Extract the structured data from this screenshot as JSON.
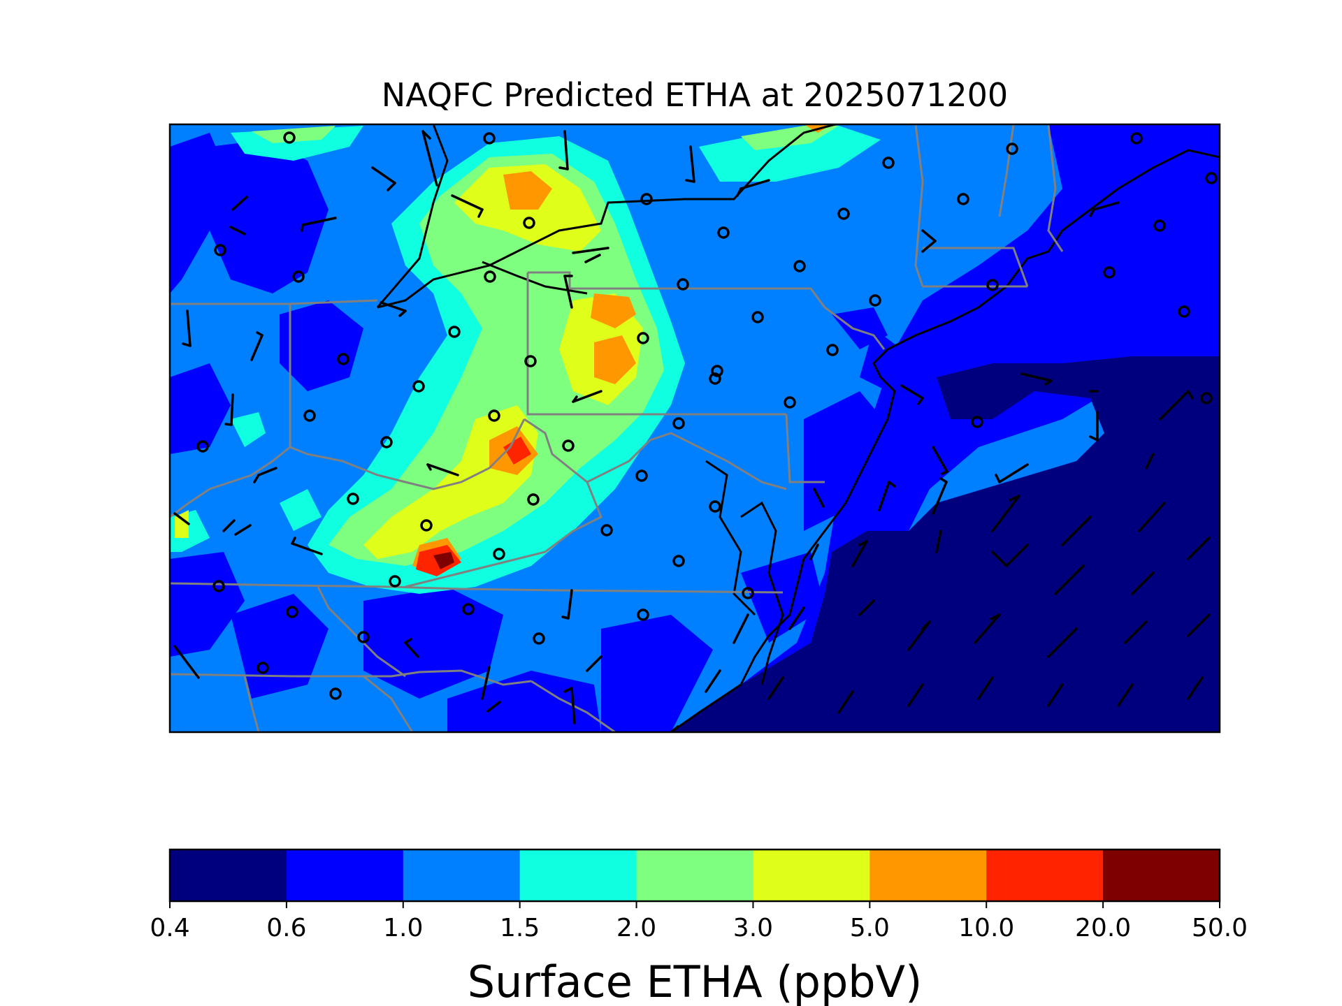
{
  "figure": {
    "title": "NAQFC Predicted ETHA at 2025071200"
  },
  "colorbar": {
    "label": "Surface ETHA (ppbV)",
    "levels": [
      "0.4",
      "0.6",
      "1.0",
      "1.5",
      "2.0",
      "3.0",
      "5.0",
      "10.0",
      "20.0",
      "50.0"
    ],
    "colors": [
      "#00007f",
      "#0000ff",
      "#007fff",
      "#10ffe0",
      "#7fff7f",
      "#dfff1a",
      "#ff9800",
      "#ff2400",
      "#7f0000"
    ]
  },
  "map": {
    "field": "Surface ETHA",
    "units": "ppbV",
    "features": [
      "filled concentration grid",
      "coastlines",
      "state borders",
      "wind barbs",
      "calm-wind station circles"
    ]
  }
}
